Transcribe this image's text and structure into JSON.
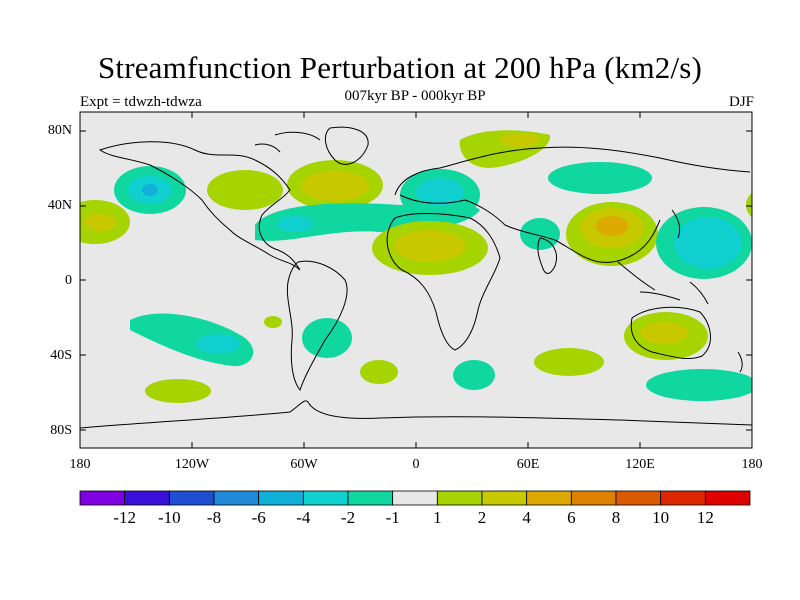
{
  "title": "Streamfunction Perturbation at 200 hPa (km2/s)",
  "subtitle": "007kyr BP - 000kyr BP",
  "left_label": "Expt = tdwzh-tdwza",
  "right_label": "DJF",
  "axes": {
    "lat_ticks": [
      "80N",
      "40N",
      "0",
      "40S",
      "80S"
    ],
    "lon_ticks": [
      "180",
      "120W",
      "60W",
      "0",
      "60E",
      "120E",
      "180"
    ]
  },
  "colorbar": {
    "labels": [
      "-12",
      "-10",
      "-8",
      "-6",
      "-4",
      "-2",
      "-1",
      "1",
      "2",
      "4",
      "6",
      "8",
      "10",
      "12"
    ],
    "colors": [
      "#7f00e0",
      "#3a10d8",
      "#1f4fd0",
      "#1e8ad8",
      "#10b0d8",
      "#10d0d0",
      "#10d6a0",
      "#e8e8e8",
      "#a6d400",
      "#c8c800",
      "#dcaa00",
      "#dc8200",
      "#dc5a00",
      "#dc2800",
      "#e00000"
    ]
  },
  "colors": {
    "land_bg": "#e8e8e8",
    "coast": "#000000"
  }
}
